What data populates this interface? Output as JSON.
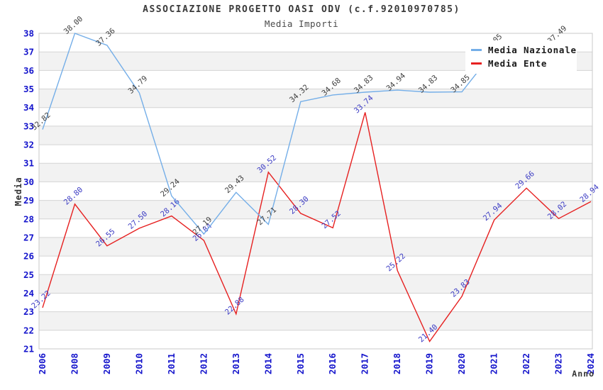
{
  "title": "ASSOCIAZIONE PROGETTO OASI ODV (c.f.92010970785)",
  "subtitle": "Media Importi",
  "chart_data": {
    "type": "line",
    "x": [
      "2006",
      "2008",
      "2009",
      "2010",
      "2011",
      "2012",
      "2013",
      "2014",
      "2015",
      "2016",
      "2017",
      "2018",
      "2019",
      "2020",
      "2021",
      "2022",
      "2023",
      "2024"
    ],
    "series": [
      {
        "name": "Media Nazionale",
        "color": "#74aee8",
        "label_color": "#404040",
        "values": [
          32.82,
          38.0,
          37.36,
          34.79,
          29.24,
          27.19,
          29.43,
          27.71,
          34.32,
          34.68,
          34.83,
          34.94,
          34.83,
          34.85,
          37.05,
          null,
          37.49,
          null
        ]
      },
      {
        "name": "Media Ente",
        "color": "#e62020",
        "label_color": "#3c3cc4",
        "values": [
          23.22,
          28.8,
          26.55,
          27.5,
          28.16,
          26.84,
          22.88,
          30.52,
          28.3,
          27.52,
          33.74,
          25.22,
          21.4,
          23.83,
          27.94,
          29.66,
          28.02,
          28.94
        ]
      }
    ],
    "xlabel": "Anno",
    "ylabel": "Media",
    "ylim": [
      21,
      38
    ],
    "ytick_step": 1,
    "grid": "horizontal",
    "band_fill": "#f2f2f2",
    "gridline_color": "#d4d4d4",
    "plot_border_color": "#c8c8c8",
    "tick_label_color": "#1414cc",
    "axis_title_color": "#333333",
    "legend_position": "top-right"
  }
}
